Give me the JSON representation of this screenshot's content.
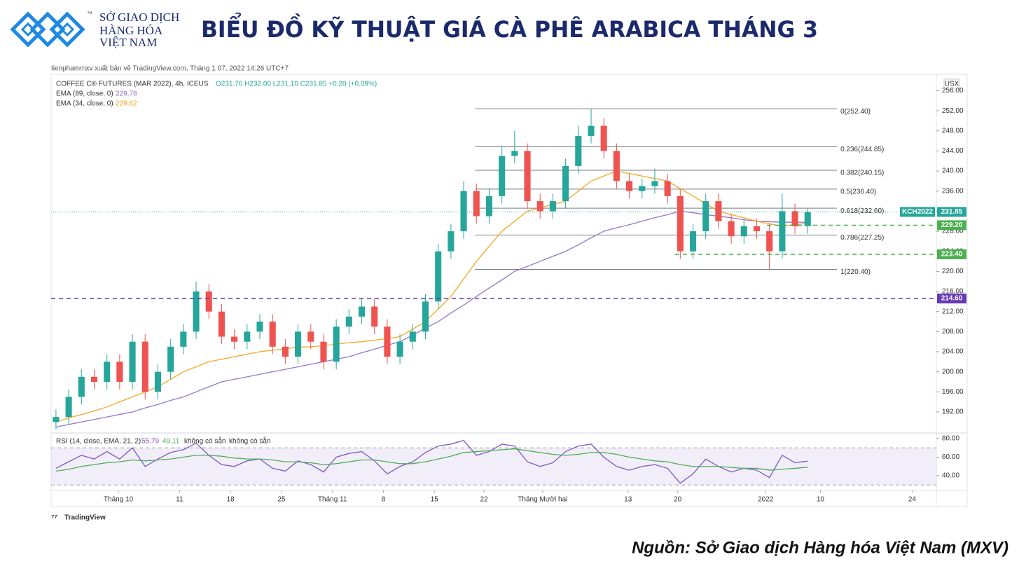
{
  "header": {
    "logo_lines": [
      "SỞ GIAO DỊCH",
      "HÀNG HÓA",
      "VIỆT NAM"
    ],
    "trademark": "™",
    "title": "BIỂU ĐỒ KỸ THUẬT GIÁ CÀ PHÊ ARABICA THÁNG 3"
  },
  "source": "Nguồn: Sở Giao dịch Hàng hóa Việt Nam (MXV)",
  "chart_data": {
    "type": "candlestick",
    "published": "tienphammxv xuất bản về TradingView.com, Tháng 1 07, 2022 14:26 UTC+7",
    "currency": "USX",
    "symbol_info": "COFFEE C® FUTURES (MAR 2022), 4h, ICEUS",
    "ohlc_text": "O231.70  H232.00  L231.10  C231.85  +0.20 (+0.09%)",
    "candles": {
      "up_color": "#26a69a",
      "down_color": "#ef5350",
      "open": [
        190,
        191,
        195,
        199,
        198,
        202,
        198,
        206,
        196,
        200,
        205,
        208,
        216,
        212,
        207,
        206,
        208,
        210,
        205,
        203,
        208,
        206,
        202,
        209,
        211,
        213,
        209,
        203,
        206,
        208,
        214,
        224,
        228,
        236,
        231,
        235,
        243,
        244,
        234,
        232,
        234,
        241,
        247,
        249,
        244,
        238,
        236,
        237,
        238,
        235,
        224,
        228,
        234,
        230,
        227,
        229,
        228,
        224,
        232,
        229
      ],
      "high": [
        192.5,
        196.5,
        200.5,
        200.5,
        203.5,
        203.5,
        207.5,
        207.5,
        201.5,
        206.5,
        209.5,
        218,
        217.5,
        213.5,
        208.5,
        209.5,
        211.5,
        211.5,
        206.5,
        209.5,
        209.5,
        207.5,
        210.5,
        212.5,
        214.5,
        214.5,
        210.5,
        207.5,
        209.5,
        215.5,
        225.5,
        229.5,
        238,
        237.5,
        236.5,
        245,
        248,
        245.5,
        235.5,
        235.5,
        242.5,
        249,
        252.4,
        250.5,
        245.5,
        239.5,
        238.5,
        240.5,
        239.5,
        236.5,
        229.5,
        235.5,
        235.5,
        231.5,
        230.5,
        230.5,
        229.5,
        235.5,
        233.5,
        232.5
      ],
      "low": [
        188.5,
        189.5,
        193.5,
        196.5,
        196.5,
        196.5,
        196.5,
        194.5,
        194.5,
        198.5,
        203.5,
        206.5,
        210.5,
        205.5,
        204.5,
        204.5,
        206.5,
        203.5,
        201.5,
        201.5,
        204.5,
        200.5,
        200.5,
        207.5,
        209.5,
        207.5,
        201.5,
        201.5,
        204.5,
        206.5,
        212.5,
        222.5,
        226.5,
        229.5,
        229.5,
        233.5,
        241.5,
        232.5,
        230.5,
        230.5,
        232.5,
        239.5,
        245.5,
        242.5,
        236.5,
        234.5,
        234.5,
        235.5,
        233.5,
        222.5,
        222.5,
        226.5,
        228.5,
        225.5,
        225.5,
        226.5,
        220.4,
        222.5,
        227.5,
        227.5
      ],
      "close": [
        191,
        195,
        199,
        198,
        202,
        198,
        206,
        196,
        200,
        205,
        208,
        216,
        212,
        207,
        206,
        208,
        210,
        205,
        203,
        208,
        206,
        202,
        209,
        211,
        213,
        209,
        203,
        206,
        208,
        214,
        224,
        228,
        236,
        231,
        235,
        243,
        244,
        234,
        232,
        234,
        241,
        247,
        249,
        244,
        238,
        236,
        237,
        238,
        235,
        224,
        228,
        234,
        230,
        227,
        229,
        228,
        224,
        232,
        229,
        231.85
      ]
    },
    "series": [
      {
        "name": "EMA (89, close, 0)",
        "color": "#9575cd",
        "values": [
          189,
          189.5,
          190,
          190.5,
          191,
          191.5,
          192,
          192.8,
          193.5,
          194.3,
          195,
          196,
          197,
          198,
          198.5,
          199,
          199.5,
          200,
          200.5,
          201,
          201.5,
          202,
          202.5,
          203,
          203.8,
          204.5,
          205.3,
          206,
          207.3,
          208.7,
          210,
          211.7,
          213.3,
          215,
          216.7,
          218.3,
          220,
          221,
          222,
          223,
          224,
          225.3,
          226.7,
          228,
          228.7,
          229.3,
          230,
          230.7,
          231.3,
          232,
          231.7,
          231.3,
          231,
          230.7,
          230.3,
          230,
          229.9,
          229.8,
          229.8,
          229.78
        ]
      },
      {
        "name": "EMA (34, close, 0)",
        "color": "#f5a623",
        "values": [
          190,
          190.8,
          191.5,
          192.2,
          193,
          194,
          195,
          196,
          197,
          198.5,
          200,
          201,
          202,
          202.5,
          203,
          203.5,
          204,
          204.3,
          204.6,
          204.9,
          205,
          205.2,
          205.5,
          205.8,
          206,
          206.3,
          206.6,
          207,
          208.5,
          210,
          212.5,
          215,
          218.5,
          222,
          225,
          228,
          230,
          232,
          232.7,
          233.3,
          234,
          236,
          238,
          239,
          240,
          239.5,
          239,
          238.5,
          238,
          236.5,
          235,
          233.5,
          232,
          231.3,
          230.7,
          230,
          229.5,
          229,
          229.3,
          229.62
        ]
      }
    ],
    "xlim": [
      -0.38,
      69.1
    ],
    "xticks": [
      {
        "value": 4.9,
        "label": "Tháng 10"
      },
      {
        "value": 9.7,
        "label": "11"
      },
      {
        "value": 13.7,
        "label": "18"
      },
      {
        "value": 17.7,
        "label": "25"
      },
      {
        "value": 21.7,
        "label": "Tháng 11"
      },
      {
        "value": 25.7,
        "label": "8"
      },
      {
        "value": 29.7,
        "label": "15"
      },
      {
        "value": 33.6,
        "label": "22"
      },
      {
        "value": 38.2,
        "label": "Tháng Mười hai"
      },
      {
        "value": 44.9,
        "label": "13"
      },
      {
        "value": 48.8,
        "label": "20"
      },
      {
        "value": 55.7,
        "label": "2022"
      },
      {
        "value": 60.0,
        "label": "10"
      },
      {
        "value": 67.2,
        "label": "24"
      }
    ],
    "ylim": [
      187.95,
      257.6
    ],
    "yticks": [
      {
        "value": 192,
        "label": "192.00"
      },
      {
        "value": 196,
        "label": "196.00"
      },
      {
        "value": 200,
        "label": "200.00"
      },
      {
        "value": 204,
        "label": "204.00"
      },
      {
        "value": 208,
        "label": "208.00"
      },
      {
        "value": 212,
        "label": "212.00"
      },
      {
        "value": 216,
        "label": "216.00"
      },
      {
        "value": 220,
        "label": "220.00"
      },
      {
        "value": 224,
        "label": "224.00"
      },
      {
        "value": 228,
        "label": "228.00"
      },
      {
        "value": 232,
        "label": "232.00"
      },
      {
        "value": 236,
        "label": "236.00"
      },
      {
        "value": 240,
        "label": "240.00"
      },
      {
        "value": 244,
        "label": "244.00"
      },
      {
        "value": 248,
        "label": "248.00"
      },
      {
        "value": 252,
        "label": "252.00"
      },
      {
        "value": 256,
        "label": "256.00"
      }
    ],
    "last_label": "KCH2022",
    "last_color": "#26a69a",
    "fib_range": [
      32.9,
      61.3
    ],
    "fib": [
      {
        "value": 252.4,
        "label": "0(252.40)"
      },
      {
        "value": 244.85,
        "label": "0.236(244.85)"
      },
      {
        "value": 240.15,
        "label": "0.382(240.15)"
      },
      {
        "value": 236.4,
        "label": "0.5(236.40)"
      },
      {
        "value": 232.6,
        "label": "0.618(232.60)"
      },
      {
        "value": 227.25,
        "label": "0.786(227.25)"
      },
      {
        "value": 220.4,
        "label": "1(220.40)"
      }
    ],
    "levels": [
      {
        "value": 229.2,
        "label": "229.20",
        "color": "#4caf50",
        "start": 55.8
      },
      {
        "value": 223.4,
        "label": "223.40",
        "color": "#4caf50",
        "start": 48.6
      },
      {
        "value": 214.6,
        "label": "214.60",
        "color": "#673ab7",
        "start": -0.38
      }
    ],
    "rsi": {
      "title": "RSI (14, close, EMA, 21, 2)",
      "na": "không có sẵn",
      "series": [
        {
          "color": "#7e57c2",
          "values": [
            48,
            55,
            62,
            58,
            66,
            58,
            70,
            50,
            58,
            65,
            68,
            75,
            62,
            52,
            50,
            56,
            58,
            48,
            45,
            56,
            52,
            44,
            60,
            64,
            66,
            56,
            42,
            50,
            55,
            65,
            72,
            74,
            78,
            62,
            66,
            74,
            72,
            55,
            50,
            54,
            66,
            72,
            74,
            60,
            50,
            46,
            50,
            52,
            48,
            32,
            42,
            58,
            50,
            44,
            48,
            46,
            38,
            62,
            54,
            55.79
          ]
        },
        {
          "color": "#4caf50",
          "values": [
            45,
            47,
            50,
            52,
            54,
            55,
            57,
            56,
            57,
            58,
            60,
            62,
            62,
            61,
            59,
            58,
            58,
            57,
            55,
            55,
            54,
            52,
            53,
            55,
            57,
            57,
            55,
            53,
            53,
            55,
            58,
            61,
            65,
            66,
            67,
            68,
            69,
            67,
            65,
            63,
            62,
            63,
            65,
            65,
            63,
            60,
            58,
            56,
            55,
            52,
            50,
            50,
            50,
            49,
            48,
            48,
            46,
            47,
            48,
            49.11
          ]
        }
      ],
      "bands": [
        70,
        30
      ],
      "ylim": [
        24.2,
        84.5
      ],
      "yticks": [
        {
          "value": 40,
          "label": "40.00"
        },
        {
          "value": 60,
          "label": "60.00"
        },
        {
          "value": 80,
          "label": "80.00"
        }
      ]
    },
    "watermark": "TradingView"
  }
}
